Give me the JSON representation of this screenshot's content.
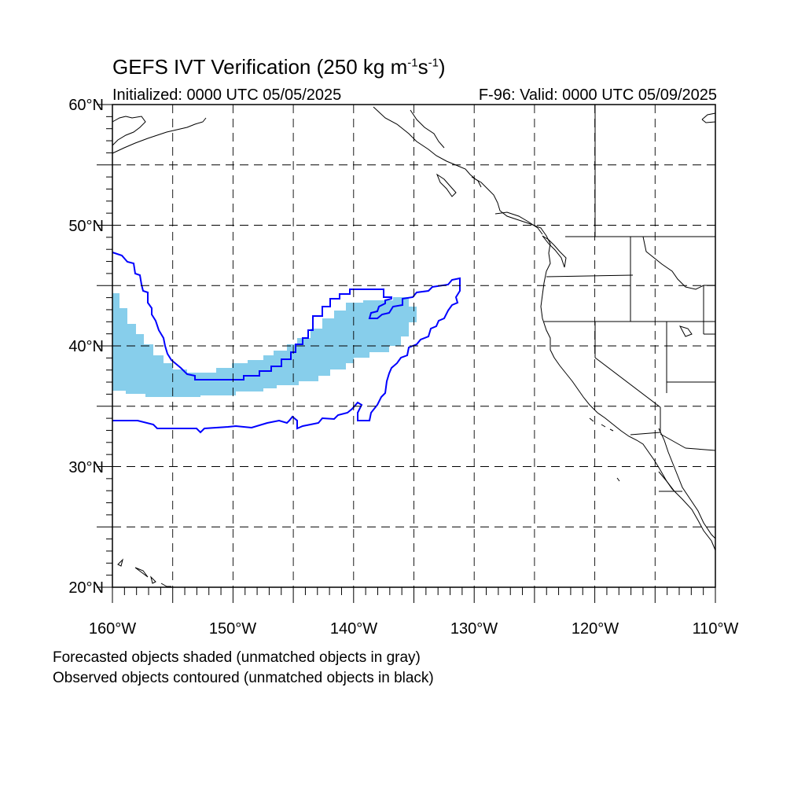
{
  "title": {
    "main": "GEFS IVT Verification (250 kg m",
    "exp1": "-1",
    "mid": "s",
    "exp2": "-1",
    "end": ")"
  },
  "initialized": "Initialized: 0000 UTC 05/05/2025",
  "valid": "F-96: Valid: 0000 UTC 05/09/2025",
  "footer": {
    "line1": "Forecasted objects shaded (unmatched objects in gray)",
    "line2": "Observed objects contoured (unmatched objects in black)"
  },
  "map": {
    "lon_range": [
      -160,
      -110
    ],
    "lat_range": [
      20,
      60
    ],
    "lat_labels": [
      "20°N",
      "30°N",
      "40°N",
      "50°N",
      "60°N"
    ],
    "lon_labels": [
      "160°W",
      "150°W",
      "140°W",
      "130°W",
      "120°W",
      "110°W"
    ],
    "grid_lines": "dashed every 5 degrees",
    "forecast_color": "#87ceeb",
    "observed_color": "#0000ff"
  }
}
